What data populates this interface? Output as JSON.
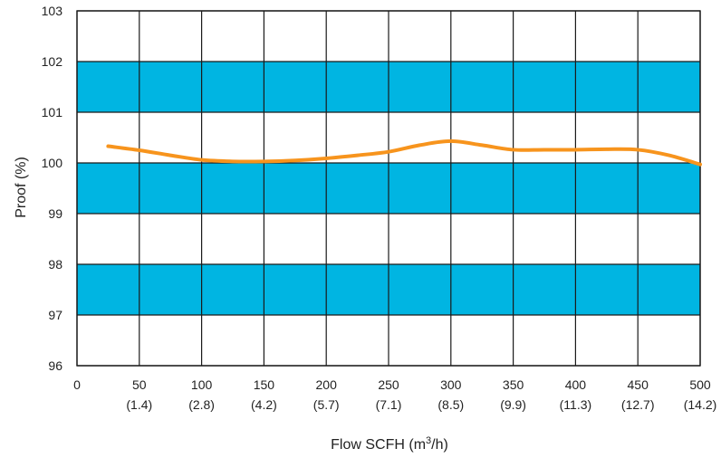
{
  "chart_data": {
    "type": "line",
    "title": "",
    "xlabel": "Flow SCFH (m³/h)",
    "xlabel_main": "Flow SCFH (m",
    "xlabel_sup": "3",
    "xlabel_tail": "/h)",
    "ylabel": "Proof (%)",
    "xlim": [
      0,
      500
    ],
    "ylim": [
      96,
      103
    ],
    "x_ticks": [
      {
        "value": 0,
        "label": "0",
        "sub": ""
      },
      {
        "value": 50,
        "label": "50",
        "sub": "(1.4)"
      },
      {
        "value": 100,
        "label": "100",
        "sub": "(2.8)"
      },
      {
        "value": 150,
        "label": "150",
        "sub": "(4.2)"
      },
      {
        "value": 200,
        "label": "200",
        "sub": "(5.7)"
      },
      {
        "value": 250,
        "label": "250",
        "sub": "(7.1)"
      },
      {
        "value": 300,
        "label": "300",
        "sub": "(8.5)"
      },
      {
        "value": 350,
        "label": "350",
        "sub": "(9.9)"
      },
      {
        "value": 400,
        "label": "400",
        "sub": "(11.3)"
      },
      {
        "value": 450,
        "label": "450",
        "sub": "(12.7)"
      },
      {
        "value": 500,
        "label": "500",
        "sub": "(14.2)"
      }
    ],
    "y_ticks": [
      "96",
      "97",
      "98",
      "99",
      "100",
      "101",
      "102",
      "103"
    ],
    "bands": [
      {
        "from": 97,
        "to": 98
      },
      {
        "from": 99,
        "to": 100
      },
      {
        "from": 101,
        "to": 102
      }
    ],
    "band_color": "#00b5e2",
    "grid": true,
    "series": [
      {
        "color": "#f7941d",
        "points": [
          [
            25,
            100.33
          ],
          [
            50,
            100.25
          ],
          [
            75,
            100.15
          ],
          [
            100,
            100.06
          ],
          [
            125,
            100.03
          ],
          [
            150,
            100.03
          ],
          [
            175,
            100.05
          ],
          [
            200,
            100.09
          ],
          [
            225,
            100.15
          ],
          [
            250,
            100.22
          ],
          [
            275,
            100.35
          ],
          [
            300,
            100.43
          ],
          [
            325,
            100.35
          ],
          [
            350,
            100.26
          ],
          [
            375,
            100.26
          ],
          [
            400,
            100.26
          ],
          [
            425,
            100.27
          ],
          [
            450,
            100.26
          ],
          [
            475,
            100.15
          ],
          [
            500,
            99.97
          ]
        ]
      }
    ]
  }
}
